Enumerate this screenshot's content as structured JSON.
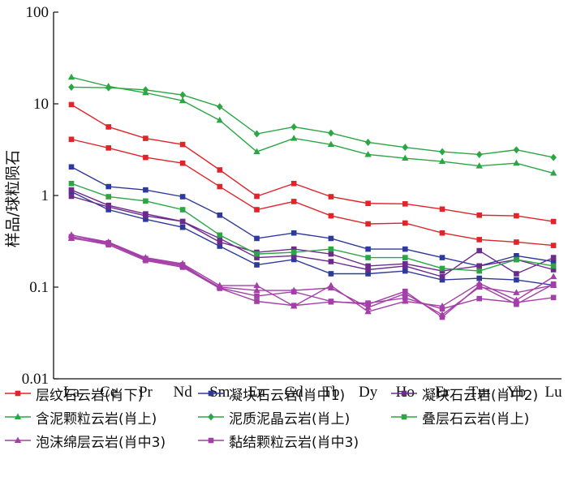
{
  "chart_data": {
    "type": "line",
    "title": "",
    "xlabel": "",
    "ylabel": "样品/球粒陨石",
    "yscale": "log",
    "ylim": [
      0.01,
      100
    ],
    "yticks": [
      "0.01",
      "0.1",
      "1",
      "10",
      "100"
    ],
    "yticks_values": [
      0.01,
      0.1,
      1,
      10,
      100
    ],
    "categories": [
      "La",
      "Ce",
      "Pr",
      "Nd",
      "Sm",
      "Eu",
      "Gd",
      "Tb",
      "Dy",
      "Ho",
      "Er",
      "Tm",
      "Yb",
      "Lu"
    ],
    "grid": false,
    "legend_position": "bottom",
    "series": [
      {
        "name": "层纹石云岩(肖下)",
        "color": "#e0242a",
        "marker": "square",
        "values": [
          9.8,
          5.6,
          4.2,
          3.6,
          1.9,
          0.98,
          1.35,
          0.97,
          0.82,
          0.81,
          0.71,
          0.61,
          0.6,
          0.52
        ]
      },
      {
        "name": "层纹石云岩(肖下)",
        "color": "#e0242a",
        "marker": "square",
        "values": [
          4.1,
          3.3,
          2.6,
          2.25,
          1.25,
          0.7,
          0.86,
          0.6,
          0.49,
          0.5,
          0.39,
          0.33,
          0.31,
          0.285
        ]
      },
      {
        "name": "凝块石云岩(肖中1)",
        "color": "#2d3a9b",
        "marker": "square",
        "values": [
          2.05,
          1.25,
          1.15,
          0.97,
          0.61,
          0.34,
          0.39,
          0.34,
          0.26,
          0.26,
          0.21,
          0.17,
          0.22,
          0.19
        ]
      },
      {
        "name": "凝块石云岩(肖中1)",
        "color": "#2d3a9b",
        "marker": "square",
        "values": [
          1.1,
          0.7,
          0.55,
          0.45,
          0.28,
          0.175,
          0.2,
          0.14,
          0.14,
          0.15,
          0.12,
          0.125,
          0.12,
          0.105
        ]
      },
      {
        "name": "凝块石云岩(肖中2)",
        "color": "#6b2a8c",
        "marker": "square",
        "values": [
          1.15,
          0.78,
          0.63,
          0.52,
          0.34,
          0.21,
          0.22,
          0.19,
          0.155,
          0.17,
          0.13,
          0.25,
          0.14,
          0.21
        ]
      },
      {
        "name": "凝块石云岩(肖中2)",
        "color": "#6b2a8c",
        "marker": "square",
        "values": [
          0.98,
          0.75,
          0.6,
          0.52,
          0.31,
          0.24,
          0.26,
          0.23,
          0.17,
          0.18,
          0.15,
          0.17,
          0.2,
          0.155
        ]
      },
      {
        "name": "含泥颗粒云岩(肖上)",
        "color": "#2ba644",
        "marker": "triangle",
        "values": [
          19.5,
          15.5,
          13.2,
          10.8,
          6.6,
          3.0,
          4.2,
          3.6,
          2.8,
          2.55,
          2.35,
          2.1,
          2.25,
          1.75
        ]
      },
      {
        "name": "泥质泥晶云岩(肖上)",
        "color": "#2ba644",
        "marker": "diamond",
        "values": [
          15.2,
          15.0,
          14.2,
          12.5,
          9.3,
          4.7,
          5.6,
          4.8,
          3.8,
          3.35,
          3.0,
          2.8,
          3.15,
          2.6
        ]
      },
      {
        "name": "叠层石云岩(肖上)",
        "color": "#2ba644",
        "marker": "square",
        "values": [
          1.35,
          0.97,
          0.87,
          0.7,
          0.37,
          0.23,
          0.24,
          0.26,
          0.21,
          0.21,
          0.16,
          0.15,
          0.2,
          0.17
        ]
      },
      {
        "name": "泡沫绵层云岩(肖中3)",
        "color": "#a43fa8",
        "marker": "triangle",
        "values": [
          0.37,
          0.31,
          0.21,
          0.18,
          0.104,
          0.104,
          0.062,
          0.104,
          0.054,
          0.07,
          0.062,
          0.11,
          0.072,
          0.13
        ]
      },
      {
        "name": "泡沫绵层云岩(肖中3)",
        "color": "#a43fa8",
        "marker": "triangle",
        "values": [
          0.34,
          0.3,
          0.2,
          0.17,
          0.1,
          0.092,
          0.092,
          0.098,
          0.06,
          0.085,
          0.05,
          0.1,
          0.087,
          0.105
        ]
      },
      {
        "name": "黏结颗粒云岩(肖中3)",
        "color": "#a43fa8",
        "marker": "square",
        "values": [
          0.355,
          0.305,
          0.205,
          0.175,
          0.098,
          0.08,
          0.089,
          0.07,
          0.065,
          0.09,
          0.047,
          0.104,
          0.065,
          0.108
        ]
      },
      {
        "name": "黏结颗粒云岩(肖中3)",
        "color": "#a43fa8",
        "marker": "square",
        "values": [
          0.345,
          0.29,
          0.195,
          0.165,
          0.097,
          0.07,
          0.063,
          0.069,
          0.067,
          0.076,
          0.058,
          0.075,
          0.068,
          0.077
        ]
      }
    ],
    "legend": [
      {
        "label": "层纹石云岩(肖下)",
        "color": "#e0242a",
        "marker": "square"
      },
      {
        "label": "凝块石云岩(肖中1)",
        "color": "#2d3a9b",
        "marker": "square"
      },
      {
        "label": "凝块石云岩(肖中2)",
        "color": "#6b2a8c",
        "marker": "square"
      },
      {
        "label": "含泥颗粒云岩(肖上)",
        "color": "#2ba644",
        "marker": "triangle"
      },
      {
        "label": "泥质泥晶云岩(肖上)",
        "color": "#2ba644",
        "marker": "diamond"
      },
      {
        "label": "叠层石云岩(肖上)",
        "color": "#2ba644",
        "marker": "square"
      },
      {
        "label": "泡沫绵层云岩(肖中3)",
        "color": "#a43fa8",
        "marker": "triangle"
      },
      {
        "label": "黏结颗粒云岩(肖中3)",
        "color": "#a43fa8",
        "marker": "square"
      }
    ]
  }
}
